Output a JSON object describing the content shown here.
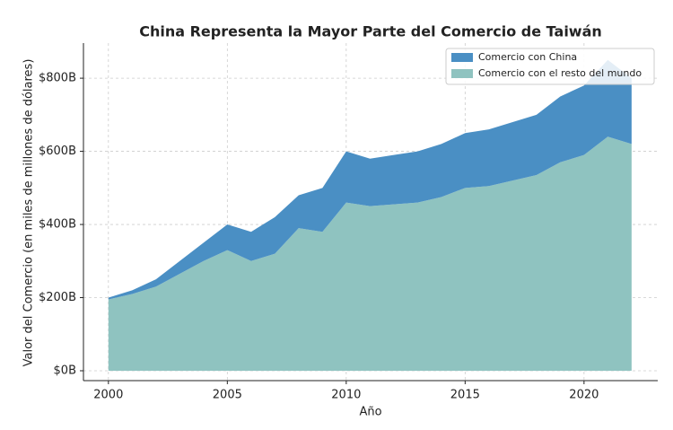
{
  "chart_data": {
    "type": "stacked-area",
    "title": "China Representa la Mayor Parte del Comercio de Taiwán",
    "x_label": "Año",
    "y_label": "Valor del Comercio (en miles de millones de dólares)",
    "x": [
      2000,
      2001,
      2002,
      2003,
      2004,
      2005,
      2006,
      2007,
      2008,
      2009,
      2010,
      2011,
      2012,
      2013,
      2014,
      2015,
      2016,
      2017,
      2018,
      2019,
      2020,
      2021,
      2022
    ],
    "series": [
      {
        "name": "Comercio con China",
        "color": "#4a8fc4",
        "values": [
          5,
          10,
          20,
          35,
          50,
          70,
          80,
          100,
          90,
          120,
          140,
          130,
          135,
          140,
          145,
          150,
          155,
          160,
          165,
          180,
          190,
          210,
          180
        ]
      },
      {
        "name": "Comercio con el resto del mundo",
        "color": "#8fc3c0",
        "values": [
          195,
          210,
          230,
          265,
          300,
          330,
          300,
          320,
          390,
          380,
          460,
          450,
          455,
          460,
          475,
          500,
          505,
          520,
          535,
          570,
          590,
          640,
          620
        ]
      }
    ],
    "stack_order": "bottom-up-reverse",
    "xlim": [
      1998.95,
      2023.1
    ],
    "ylim": [
      -27,
      896
    ],
    "xticks": [
      2000,
      2005,
      2010,
      2015,
      2020
    ],
    "yticks": [
      {
        "value": 0,
        "label": "$0B"
      },
      {
        "value": 200,
        "label": "$200B"
      },
      {
        "value": 400,
        "label": "$400B"
      },
      {
        "value": 600,
        "label": "$600B"
      },
      {
        "value": 800,
        "label": "$800B"
      }
    ],
    "grid": true,
    "legend": "upper-right"
  }
}
